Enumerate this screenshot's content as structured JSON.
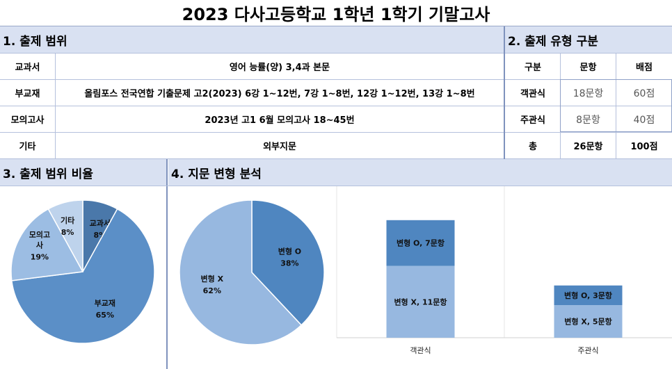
{
  "title": "2023 다사고등학교 1학년 1학기 기말고사",
  "scope": {
    "heading": "1. 출제 범위",
    "rows": [
      {
        "label": "교과서",
        "value": "영어 능률(양) 3,4과 본문"
      },
      {
        "label": "부교재",
        "value": "올림포스 전국연합 기출문제 고2(2023) 6강 1~12번, 7강 1~8번, 12강 1~12번, 13강 1~8번"
      },
      {
        "label": "모의고사",
        "value": "2023년 고1 6월 모의고사 18~45번"
      },
      {
        "label": "기타",
        "value": "외부지문"
      }
    ]
  },
  "types": {
    "heading": "2. 출제 유형 구분",
    "headers": [
      "구분",
      "문항",
      "배점"
    ],
    "rows": [
      {
        "label": "객관식",
        "count": "18문항",
        "score": "60점"
      },
      {
        "label": "주관식",
        "count": "8문항",
        "score": "40점"
      }
    ],
    "total": {
      "label": "총",
      "count": "26문항",
      "score": "100점"
    }
  },
  "chart_data": [
    {
      "type": "pie",
      "title": "3. 출제 범위 비율",
      "slices": [
        {
          "name": "교과서",
          "value": 8,
          "label": "8%",
          "color": "#4a78aa"
        },
        {
          "name": "부교재",
          "value": 65,
          "label": "65%",
          "color": "#5b8fc7"
        },
        {
          "name": "모의고사",
          "value": 19,
          "label": "19%",
          "color": "#9cbde3"
        },
        {
          "name": "기타",
          "value": 8,
          "label": "8%",
          "color": "#bed3ec"
        }
      ],
      "start_angle_deg": 0,
      "direction": "clockwise"
    },
    {
      "type": "pie",
      "title": "4. 지문 변형 분석",
      "slices": [
        {
          "name": "변형 O",
          "value": 38,
          "label": "38%",
          "color": "#4f86c0"
        },
        {
          "name": "변형 X",
          "value": 62,
          "label": "62%",
          "color": "#97b8e0"
        }
      ],
      "start_angle_deg": 0,
      "direction": "clockwise"
    },
    {
      "type": "bar",
      "stacked": true,
      "categories": [
        "객관식",
        "주관식"
      ],
      "series": [
        {
          "name": "변형 X",
          "values": [
            11,
            5
          ],
          "labels": [
            "변형 X, 11문항",
            "변형 X, 5문항"
          ],
          "color": "#97b8e0"
        },
        {
          "name": "변형 O",
          "values": [
            7,
            3
          ],
          "labels": [
            "변형 O, 7문항",
            "변형 O, 3문항"
          ],
          "color": "#4f86c0"
        }
      ],
      "ylim": [
        0,
        20
      ]
    }
  ]
}
